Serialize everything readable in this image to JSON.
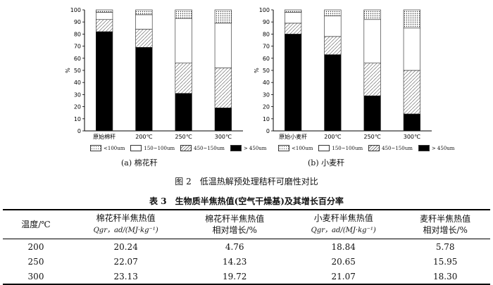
{
  "chart_data": [
    {
      "type": "bar",
      "stacked": true,
      "caption": "(a) 棉花秆",
      "ylabel": "%",
      "ylim": [
        0,
        100
      ],
      "yticks": [
        0,
        10,
        20,
        30,
        40,
        50,
        60,
        70,
        80,
        90,
        100
      ],
      "categories": [
        "原始棉秆",
        "200℃",
        "250℃",
        "300℃"
      ],
      "series": [
        {
          "name": "> 450um",
          "values": [
            82,
            69,
            31,
            19
          ]
        },
        {
          "name": "450~150um",
          "values": [
            10,
            15,
            25,
            33
          ]
        },
        {
          "name": "150~100um",
          "values": [
            6,
            12,
            37,
            37
          ]
        },
        {
          "name": "<100um",
          "values": [
            2,
            4,
            7,
            11
          ]
        }
      ]
    },
    {
      "type": "bar",
      "stacked": true,
      "caption": "(b) 小麦秆",
      "ylabel": "%",
      "ylim": [
        0,
        100
      ],
      "yticks": [
        0,
        10,
        20,
        30,
        40,
        50,
        60,
        70,
        80,
        90,
        100
      ],
      "categories": [
        "原始小麦秆",
        "200℃",
        "250℃",
        "300℃"
      ],
      "series": [
        {
          "name": "> 450um",
          "values": [
            80,
            63,
            29,
            14
          ]
        },
        {
          "name": "450~150um",
          "values": [
            9,
            15,
            27,
            36
          ]
        },
        {
          "name": "150~100um",
          "values": [
            9,
            17,
            36,
            35
          ]
        },
        {
          "name": "<100um",
          "values": [
            2,
            5,
            8,
            15
          ]
        }
      ]
    }
  ],
  "legend": [
    "<100um",
    "150~100um",
    "450~150um",
    "> 450um"
  ],
  "figure_title": "图 2　低温热解预处理秸秆可磨性对比",
  "table": {
    "title": "表 3　生物质半焦热值(空气干燥基)及其增长百分率",
    "headers": [
      {
        "line1": "温度/℃",
        "line2": ""
      },
      {
        "line1": "棉花秆半焦热值",
        "line2": "Qgr，ad/(MJ·kg⁻¹)"
      },
      {
        "line1": "棉花秆半焦热值",
        "line2": "相对增长/%"
      },
      {
        "line1": "小麦秆半焦热值",
        "line2": "Qgr，ad/(MJ·kg⁻¹)"
      },
      {
        "line1": "麦秆半焦热值",
        "line2": "相对增长/%"
      }
    ],
    "rows": [
      [
        "200",
        "20.24",
        "4.76",
        "18.84",
        "5.78"
      ],
      [
        "250",
        "22.07",
        "14.23",
        "20.65",
        "15.95"
      ],
      [
        "300",
        "23.13",
        "19.72",
        "21.07",
        "18.30"
      ]
    ]
  },
  "colors": {
    "bar_fill_450_plus": "#000000",
    "bar_fill_light": "#ffffff",
    "axis": "#000000"
  }
}
